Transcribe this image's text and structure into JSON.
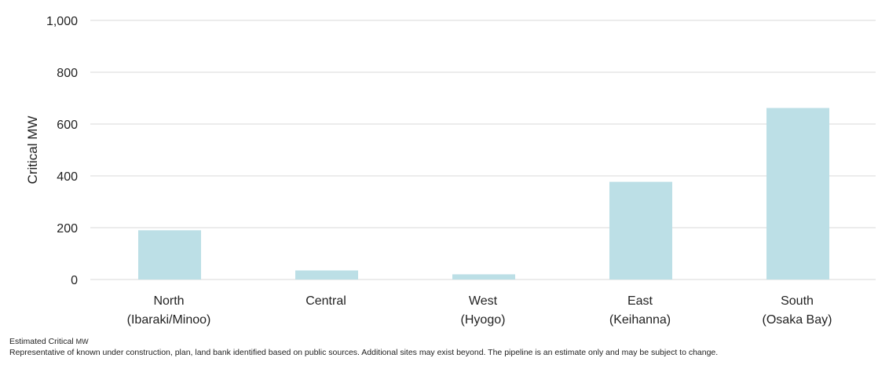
{
  "chart_data": {
    "type": "bar",
    "categories": [
      [
        "North",
        "(Ibaraki/Minoo)"
      ],
      [
        "Central"
      ],
      [
        "West",
        "(Hyogo)"
      ],
      [
        "East",
        "(Keihanna)"
      ],
      [
        "South",
        "(Osaka Bay)"
      ]
    ],
    "values": [
      190,
      35,
      20,
      377,
      662
    ],
    "ylabel": "Critical MW",
    "xlabel": "",
    "title": "",
    "ylim": [
      0,
      1000
    ],
    "yticks": [
      0,
      200,
      400,
      600,
      800,
      1000
    ],
    "ytick_labels": [
      "0",
      "200",
      "400",
      "600",
      "800",
      "1,000"
    ],
    "grid": "horizontal",
    "bar_color": "#bcdfe6",
    "gridline_color": "#d9d9d9"
  },
  "footnotes": {
    "line1_main": "Estimated Critical",
    "line1_unit": "MW",
    "line2": "Representative of known under construction, plan, land bank identified based on public sources. Additional sites may exist beyond. The pipeline is an estimate only and may be subject to change."
  }
}
